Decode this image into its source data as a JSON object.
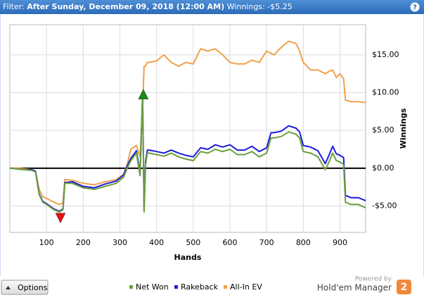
{
  "header": {
    "filter_label": "Filter:",
    "filter_value": "After Sunday, December 09, 2018 (12:00 AM)",
    "winnings_label": "Winnings:",
    "winnings": "-$5.25",
    "help": "?"
  },
  "chart_data": {
    "type": "line",
    "x_label": "Hands",
    "y_label": "Winnings",
    "x": [
      0,
      20,
      40,
      60,
      70,
      80,
      90,
      100,
      120,
      135,
      145,
      150,
      170,
      200,
      230,
      260,
      290,
      310,
      320,
      330,
      345,
      355,
      362,
      366,
      370,
      375,
      380,
      400,
      420,
      440,
      460,
      480,
      500,
      520,
      540,
      560,
      580,
      600,
      620,
      640,
      660,
      680,
      700,
      712,
      720,
      740,
      760,
      780,
      790,
      800,
      820,
      840,
      860,
      870,
      880,
      890,
      900,
      910,
      915,
      930,
      950,
      970
    ],
    "series": [
      {
        "name": "Net Won",
        "color": "#6b9e3c",
        "values": [
          0,
          -0.1,
          -0.2,
          -0.3,
          -0.5,
          -3.5,
          -4.5,
          -4.8,
          -5.5,
          -5.8,
          -5.5,
          -2.0,
          -2.0,
          -2.6,
          -2.8,
          -2.4,
          -2.0,
          -1.2,
          0.0,
          1.0,
          2.0,
          -1.0,
          9.4,
          -5.8,
          0.5,
          2.0,
          2.0,
          1.8,
          1.6,
          2.0,
          1.5,
          1.2,
          1.0,
          2.2,
          2.0,
          2.5,
          2.2,
          2.5,
          1.8,
          1.8,
          2.2,
          1.5,
          2.0,
          4.0,
          4.0,
          4.2,
          4.8,
          4.5,
          4.0,
          2.2,
          2.0,
          1.5,
          -0.2,
          0.8,
          2.0,
          1.0,
          0.8,
          0.5,
          -4.5,
          -4.8,
          -4.8,
          -5.25
        ]
      },
      {
        "name": "Rakeback",
        "color": "#1c1cdc",
        "values": [
          0,
          -0.1,
          -0.2,
          -0.2,
          -0.4,
          -3.4,
          -4.4,
          -4.7,
          -5.4,
          -5.7,
          -5.4,
          -1.9,
          -1.8,
          -2.4,
          -2.6,
          -2.1,
          -1.7,
          -0.9,
          0.3,
          1.3,
          2.3,
          -0.7,
          9.7,
          -5.5,
          0.9,
          2.4,
          2.4,
          2.2,
          2.0,
          2.4,
          2.0,
          1.7,
          1.5,
          2.7,
          2.5,
          3.1,
          2.8,
          3.1,
          2.4,
          2.4,
          2.9,
          2.2,
          2.7,
          4.7,
          4.7,
          4.9,
          5.6,
          5.3,
          4.8,
          3.0,
          2.8,
          2.3,
          0.6,
          1.7,
          2.9,
          1.9,
          1.7,
          1.4,
          -3.6,
          -3.9,
          -3.9,
          -4.3
        ]
      },
      {
        "name": "All-In EV",
        "color": "#f0a04c",
        "values": [
          0,
          0,
          -0.1,
          -0.2,
          -0.4,
          -2.8,
          -3.8,
          -4.0,
          -4.5,
          -4.8,
          -4.6,
          -1.5,
          -1.6,
          -2.0,
          -2.2,
          -1.8,
          -1.5,
          -0.8,
          0.5,
          2.5,
          3.0,
          1.5,
          8.0,
          13.5,
          13.5,
          14.0,
          14.0,
          14.2,
          15.0,
          14.0,
          13.5,
          14.0,
          13.8,
          15.8,
          15.5,
          15.8,
          15.0,
          14.0,
          13.8,
          13.8,
          14.3,
          14.0,
          15.5,
          15.2,
          15.0,
          16.0,
          16.8,
          16.5,
          15.5,
          14.0,
          13.0,
          13.0,
          12.5,
          12.8,
          13.0,
          12.0,
          12.5,
          11.8,
          9.0,
          8.8,
          8.8,
          8.7
        ]
      }
    ],
    "markers": [
      {
        "x": 138,
        "y": -6.6,
        "color": "#e81010",
        "direction": "down"
      },
      {
        "x": 364,
        "y": 9.8,
        "color": "#178a17",
        "direction": "up"
      }
    ],
    "xlim": [
      0,
      970
    ],
    "xticks": [
      100,
      200,
      300,
      400,
      500,
      600,
      700,
      800,
      900
    ],
    "ylim": [
      -8.5,
      19
    ],
    "yticks": [
      {
        "value": -5,
        "label": "-$5.00"
      },
      {
        "value": 0,
        "label": "$0.00"
      },
      {
        "value": 5,
        "label": "$5.00"
      },
      {
        "value": 10,
        "label": "$10.00"
      },
      {
        "value": 15,
        "label": "$15.00"
      }
    ],
    "grid": true,
    "zero_line": true,
    "legend": "bottom"
  },
  "footer": {
    "options": "Options",
    "powered_by": "Powered by",
    "brand": "Hold'em Manager",
    "brand_badge": "2"
  }
}
